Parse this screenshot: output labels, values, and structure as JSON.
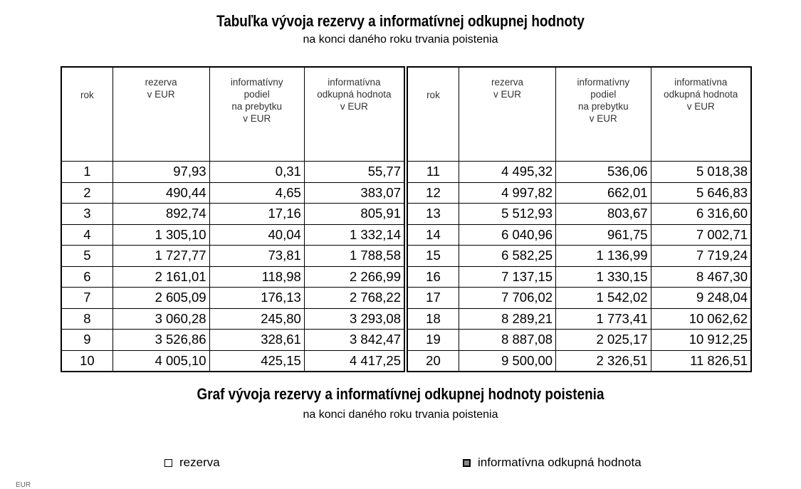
{
  "table_title": "Tabuľka vývoja rezervy a informatívnej odkupnej hodnoty",
  "table_subtitle": "na konci daného roku trvania poistenia",
  "headers": {
    "rok": "rok",
    "rezerva": [
      "rezerva",
      "v EUR"
    ],
    "podiel": [
      "informatívny",
      "podiel",
      "na prebytku",
      "v EUR"
    ],
    "odkupna": [
      "informatívna",
      "odkupná hodnota",
      "v EUR"
    ]
  },
  "rows": [
    [
      "1",
      "97,93",
      "0,31",
      "55,77"
    ],
    [
      "2",
      "490,44",
      "4,65",
      "383,07"
    ],
    [
      "3",
      "892,74",
      "17,16",
      "805,91"
    ],
    [
      "4",
      "1 305,10",
      "40,04",
      "1 332,14"
    ],
    [
      "5",
      "1 727,77",
      "73,81",
      "1 788,58"
    ],
    [
      "6",
      "2 161,01",
      "118,98",
      "2 266,99"
    ],
    [
      "7",
      "2 605,09",
      "176,13",
      "2 768,22"
    ],
    [
      "8",
      "3 060,28",
      "245,80",
      "3 293,08"
    ],
    [
      "9",
      "3 526,86",
      "328,61",
      "3 842,47"
    ],
    [
      "10",
      "4 005,10",
      "425,15",
      "4 417,25"
    ],
    [
      "11",
      "4 495,32",
      "536,06",
      "5 018,38"
    ],
    [
      "12",
      "4 997,82",
      "662,01",
      "5 646,83"
    ],
    [
      "13",
      "5 512,93",
      "803,67",
      "6 316,60"
    ],
    [
      "14",
      "6 040,96",
      "961,75",
      "7 002,71"
    ],
    [
      "15",
      "6 582,25",
      "1 136,99",
      "7 719,24"
    ],
    [
      "16",
      "7 137,15",
      "1 330,15",
      "8 467,30"
    ],
    [
      "17",
      "7 706,02",
      "1 542,02",
      "9 248,04"
    ],
    [
      "18",
      "8 289,21",
      "1 773,41",
      "10 062,62"
    ],
    [
      "19",
      "8 887,08",
      "2 025,17",
      "10 912,25"
    ],
    [
      "20",
      "9 500,00",
      "2 326,51",
      "11 826,51"
    ]
  ],
  "graph_title": "Graf vývoja rezervy a informatívnej odkupnej hodnoty poistenia",
  "graph_subtitle": "na konci daného roku trvania poistenia",
  "legend": [
    {
      "label": "rezerva",
      "swatch": "empty-square-icon"
    },
    {
      "label": "informatívna odkupná hodnota",
      "swatch": "filled-square-icon"
    }
  ],
  "axis_unit": "EUR"
}
